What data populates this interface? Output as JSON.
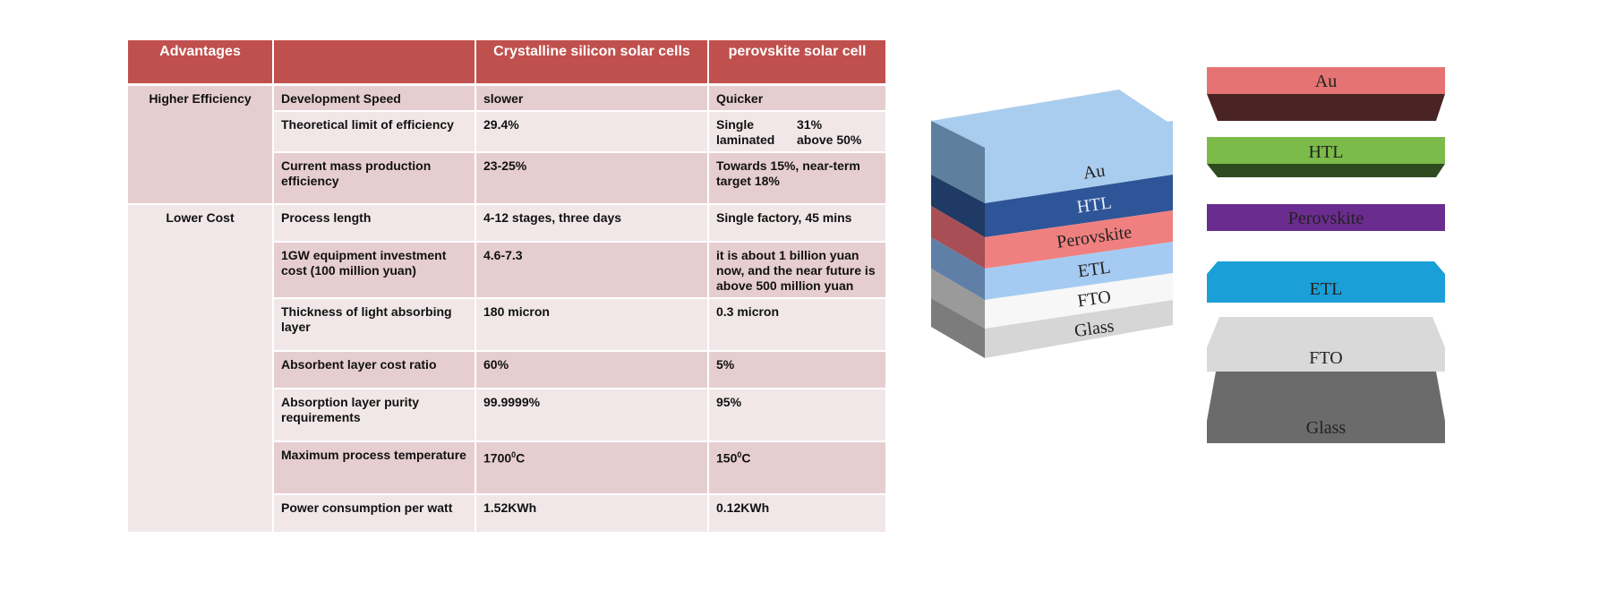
{
  "table": {
    "headers": [
      "Advantages",
      "",
      "Crystalline silicon  solar cells",
      "perovskite solar cell"
    ],
    "groups": [
      {
        "category": "Higher Efficiency",
        "rows": [
          {
            "item": "Development Speed",
            "silicon": "slower",
            "perovskite": "Quicker"
          },
          {
            "item": "Theoretical limit of efficiency",
            "silicon": "29.4%",
            "perovskite_split": [
              [
                "Single",
                "laminated"
              ],
              [
                "31%",
                "above 50%"
              ]
            ]
          },
          {
            "item": "Current mass production efficiency",
            "silicon": "23-25%",
            "perovskite": "Towards 15%, near-term target 18%"
          }
        ]
      },
      {
        "category": "Lower Cost",
        "rows": [
          {
            "item": "Process length",
            "silicon": "4-12 stages, three days",
            "perovskite": "Single factory, 45 mins"
          },
          {
            "item": "1GW equipment investment cost (100 million yuan)",
            "silicon": "4.6-7.3",
            "perovskite": "it is about 1 billion yuan now, and the near future is above 500 million yuan"
          },
          {
            "item": "Thickness of light absorbing layer",
            "silicon": "180 micron",
            "perovskite": "0.3 micron"
          },
          {
            "item": "Absorbent layer cost ratio",
            "silicon": "60%",
            "perovskite": "5%"
          },
          {
            "item": "Absorption layer purity requirements",
            "silicon": "99.9999%",
            "perovskite": "95%"
          },
          {
            "item": "Maximum process temperature",
            "silicon_temp": [
              "1700",
              "0",
              "C"
            ],
            "perovskite_temp": [
              "150",
              "0",
              "C"
            ]
          },
          {
            "item": "Power consumption per watt",
            "silicon": "1.52KWh",
            "perovskite": "0.12KWh"
          }
        ]
      }
    ]
  },
  "diagram": {
    "stack_labels": [
      "Au",
      "HTL",
      "Perovskite",
      "ETL",
      "FTO",
      "Glass"
    ],
    "exploded_labels": [
      "Au",
      "HTL",
      "Perovskite",
      "ETL",
      "FTO",
      "Glass"
    ],
    "colors": {
      "au": "#e57373",
      "au_dark": "#4a2424",
      "htl": "#7cba4a",
      "htl_dark": "#2f4a1e",
      "perovskite": "#6a2c8e",
      "etl": "#1a9fd6",
      "fto": "#d9d9d9",
      "glass": "#6b6b6b",
      "stack_top": "#a9cdee",
      "stack_htl": "#2e5597",
      "stack_pero": "#f08080",
      "stack_etl": "#a5cbf2"
    }
  }
}
